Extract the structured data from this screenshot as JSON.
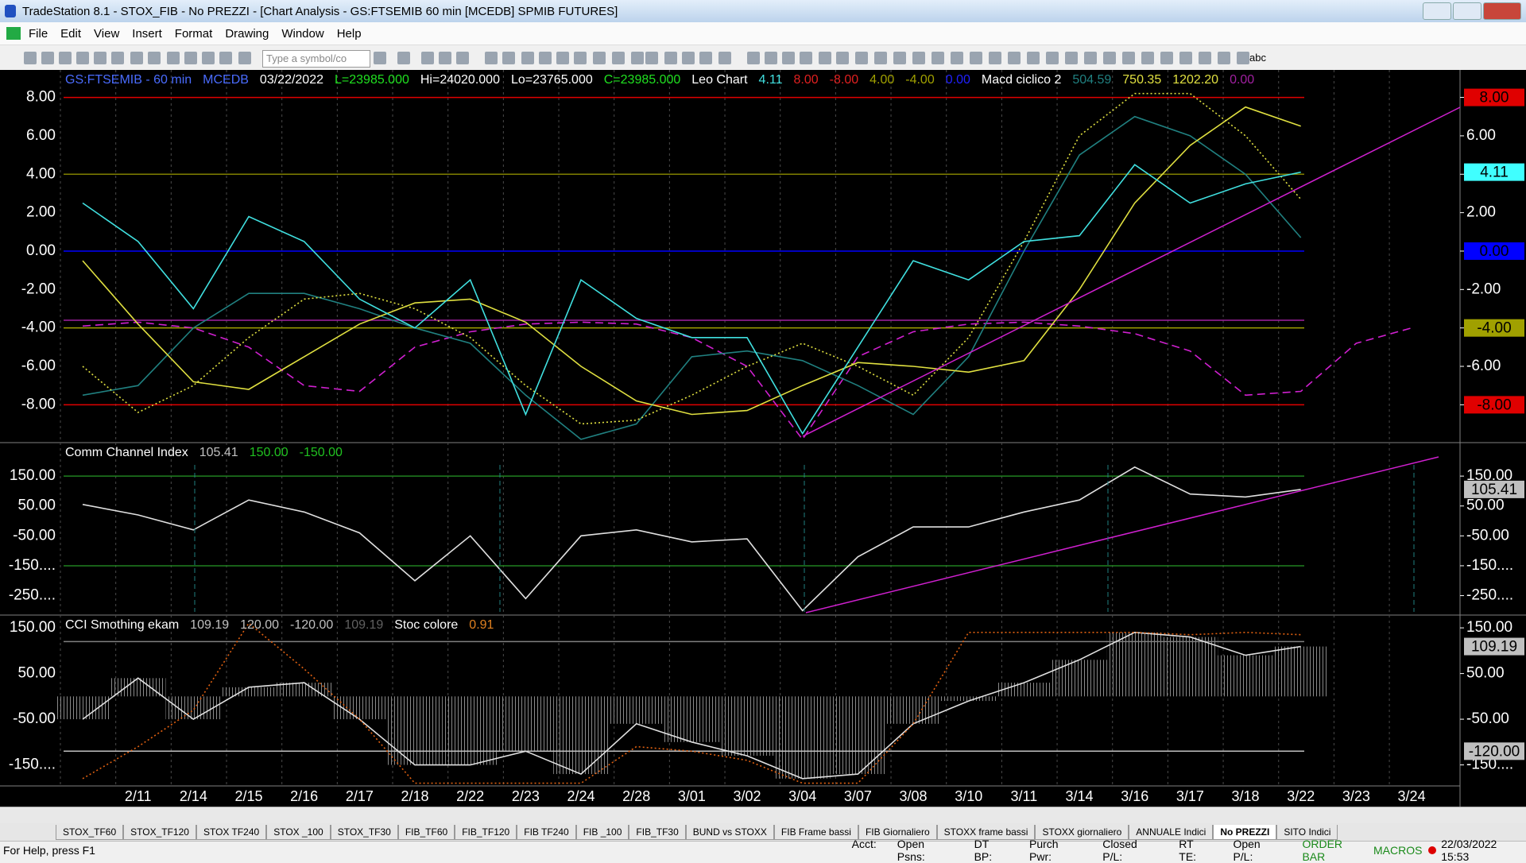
{
  "window": {
    "title": "TradeStation 8.1 - STOX_FIB - No PREZZI - [Chart Analysis - GS:FTSEMIB  60 min  [MCEDB] SPMIB FUTURES]",
    "menu": [
      "File",
      "Edit",
      "View",
      "Insert",
      "Format",
      "Drawing",
      "Window",
      "Help"
    ],
    "symbol_placeholder": "Type a symbol/co",
    "toolbar_text": "abc",
    "tabs": [
      "STOX_TF60",
      "STOX_TF120",
      "STOX TF240",
      "STOX _100",
      "STOX_TF30",
      "FIB_TF60",
      "FIB_TF120",
      "FIB TF240",
      "FIB _100",
      "FIB_TF30",
      "BUND vs STOXX",
      "FIB Frame bassi",
      "FIB Giornaliero",
      "STOXX frame bassi",
      "STOXX giornaliero",
      "ANNUALE Indici",
      "No PREZZI",
      "SITO Indici"
    ],
    "active_tab": "No PREZZI",
    "status": {
      "help": "For Help, press F1",
      "fields": [
        "Acct:",
        "Open Psns:",
        "DT BP:",
        "Purch Pwr:",
        "Closed P/L:",
        "RT TE:",
        "Open P/L:"
      ],
      "order_bar": "ORDER BAR",
      "macros": "MACROS",
      "datetime": "22/03/2022 15:53"
    }
  },
  "chart_data": [
    {
      "type": "line",
      "header": [
        {
          "text": "GS:FTSEMIB - 60 min",
          "color": "#4a6cff"
        },
        {
          "text": "MCEDB",
          "color": "#4a6cff"
        },
        {
          "text": "03/22/2022",
          "color": "#ffffff"
        },
        {
          "text": "L=23985.000",
          "color": "#20e020"
        },
        {
          "text": "Hi=24020.000",
          "color": "#ffffff"
        },
        {
          "text": "Lo=23765.000",
          "color": "#ffffff"
        },
        {
          "text": "C=23985.000",
          "color": "#20e020"
        },
        {
          "text": "Leo Chart",
          "color": "#ffffff"
        },
        {
          "text": "4.11",
          "color": "#40e0e0"
        },
        {
          "text": "8.00",
          "color": "#e02020"
        },
        {
          "text": "-8.00",
          "color": "#e02020"
        },
        {
          "text": "4.00",
          "color": "#a0a000"
        },
        {
          "text": "-4.00",
          "color": "#a0a000"
        },
        {
          "text": "0.00",
          "color": "#2020ff"
        },
        {
          "text": "Macd ciclico 2",
          "color": "#ffffff"
        },
        {
          "text": "504.59",
          "color": "#208080"
        },
        {
          "text": "750.35",
          "color": "#e0e040"
        },
        {
          "text": "1202.20",
          "color": "#e0e040"
        },
        {
          "text": "0.00",
          "color": "#a020a0"
        }
      ],
      "ylim": [
        -9.97,
        9.43
      ],
      "yticks": [
        {
          "value": 8,
          "label": "8.00"
        },
        {
          "value": 6,
          "label": "6.00"
        },
        {
          "value": 4,
          "label": "4.00"
        },
        {
          "value": 2,
          "label": "2.00"
        },
        {
          "value": 0,
          "label": "0.00"
        },
        {
          "value": -2,
          "label": "-2.00"
        },
        {
          "value": -4,
          "label": "-4.00"
        },
        {
          "value": -6,
          "label": "-6.00"
        },
        {
          "value": -8,
          "label": "-8.00"
        }
      ],
      "levels": [
        {
          "value": 8,
          "label": "8.00",
          "color": "#e00000",
          "text_color": "#000000",
          "line": true
        },
        {
          "value": 4,
          "color": "#808000",
          "line": true
        },
        {
          "value": 4.11,
          "label": "4.11",
          "color": "#40ffff",
          "text_color": "#000000",
          "line": false
        },
        {
          "value": 0,
          "label": "0.00",
          "color": "#0000ff",
          "text_color": "#000000",
          "line": true
        },
        {
          "value": -3.6,
          "color": "#a020a0",
          "line": true
        },
        {
          "value": -4,
          "label": "-4.00",
          "color": "#a0a000",
          "text_color": "#000000",
          "line": true
        },
        {
          "value": -8,
          "label": "-8.00",
          "color": "#e00000",
          "text_color": "#000000",
          "line": true
        }
      ],
      "series": [
        {
          "color": "#d020d0",
          "style": "dashed",
          "values": [
            -3.9,
            -3.7,
            -4,
            -5,
            -7,
            -7.3,
            -5,
            -4.2,
            -3.8,
            -3.7,
            -3.8,
            -4.5,
            -6,
            -9.8,
            -5.5,
            -4.2,
            -3.8,
            -3.7,
            -3.9,
            -4.3,
            -5.2,
            -7.5,
            -7.3,
            -4.8,
            -4
          ]
        },
        {
          "color": "#208080",
          "style": "solid",
          "values": [
            -7.5,
            -7,
            -4,
            -2.2,
            -2.2,
            -3,
            -4,
            -4.8,
            -7.5,
            -9.8,
            -9,
            -5.5,
            -5.2,
            -5.7,
            -7,
            -8.5,
            -5.5,
            0,
            5,
            7,
            6,
            4,
            0.7,
            null,
            null
          ]
        },
        {
          "color": "#e0e040",
          "style": "solid",
          "values": [
            -0.5,
            -3.8,
            -6.8,
            -7.2,
            -5.5,
            -3.8,
            -2.7,
            -2.5,
            -3.7,
            -6,
            -7.8,
            -8.5,
            -8.3,
            -7,
            -5.8,
            -6,
            -6.3,
            -5.7,
            -2,
            2.5,
            5.5,
            7.5,
            6.5,
            null,
            null
          ]
        },
        {
          "color": "#e0e040",
          "style": "dotted",
          "values": [
            -6,
            -8.4,
            -7,
            -4.5,
            -2.5,
            -2.2,
            -3,
            -4.5,
            -7,
            -9,
            -8.8,
            -7.5,
            -6,
            -4.8,
            -6,
            -7.5,
            -4.5,
            0.5,
            6,
            8.2,
            8.2,
            6,
            2.7,
            null,
            null
          ]
        },
        {
          "color": "#40e0e0",
          "style": "solid",
          "values": [
            2.5,
            0.5,
            -3,
            1.8,
            0.5,
            -2.5,
            -4,
            -1.5,
            -8.5,
            -1.5,
            -3.5,
            -4.5,
            -4.5,
            -9.5,
            -5,
            -0.5,
            -1.5,
            0.5,
            0.8,
            4.5,
            2.5,
            3.5,
            4.11,
            null,
            null
          ]
        }
      ]
    },
    {
      "type": "line",
      "header": [
        {
          "text": "Comm Channel Index",
          "color": "#ffffff"
        },
        {
          "text": "105.41",
          "color": "#c0c0c0"
        },
        {
          "text": "150.00",
          "color": "#20c020"
        },
        {
          "text": "-150.00",
          "color": "#20c020"
        }
      ],
      "ylim": [
        -315,
        262
      ],
      "yticks": [
        {
          "value": 150,
          "label": "150.00"
        },
        {
          "value": 50,
          "label": "50.00"
        },
        {
          "value": -50,
          "label": "-50.00"
        },
        {
          "value": -150,
          "label": "-150...."
        },
        {
          "value": -250,
          "label": "-250...."
        }
      ],
      "levels": [
        {
          "value": 150,
          "color": "#208020",
          "line": true
        },
        {
          "value": 105.41,
          "label": "105.41",
          "color": "#c0c0c0",
          "text_color": "#000000",
          "line": false
        },
        {
          "value": -150,
          "color": "#208020",
          "line": true
        }
      ],
      "series": [
        {
          "color": "#e0e0e0",
          "style": "solid",
          "values": [
            55,
            20,
            -30,
            70,
            30,
            -40,
            -200,
            -50,
            -260,
            -50,
            -30,
            -70,
            -60,
            -300,
            -120,
            -20,
            -20,
            30,
            70,
            180,
            90,
            80,
            105.41,
            null,
            null
          ]
        }
      ]
    },
    {
      "type": "line",
      "header": [
        {
          "text": "CCI Smothing ekam",
          "color": "#ffffff"
        },
        {
          "text": "109.19",
          "color": "#c0c0c0"
        },
        {
          "text": "120.00",
          "color": "#c0c0c0"
        },
        {
          "text": "-120.00",
          "color": "#c0c0c0"
        },
        {
          "text": "109.19",
          "color": "#606060"
        },
        {
          "text": "Stoc colore",
          "color": "#ffffff"
        },
        {
          "text": "0.91",
          "color": "#e08020"
        }
      ],
      "ylim": [
        -196,
        178
      ],
      "yticks": [
        {
          "value": 150,
          "label": "150.00"
        },
        {
          "value": 50,
          "label": "50.00"
        },
        {
          "value": -50,
          "label": "-50.00"
        },
        {
          "value": -150,
          "label": "-150...."
        }
      ],
      "levels": [
        {
          "value": 120,
          "color": "#808080",
          "line": true
        },
        {
          "value": 109.19,
          "label": "109.19",
          "color": "#c0c0c0",
          "text_color": "#000000",
          "line": false
        },
        {
          "value": -120,
          "label": "-120.00",
          "color": "#c0c0c0",
          "text_color": "#000000",
          "line": true
        }
      ],
      "categories": [
        null,
        "2/11",
        "2/14",
        "2/15",
        "2/16",
        "2/17",
        "2/18",
        "2/22",
        "2/23",
        "2/24",
        "2/28",
        "3/01",
        "3/02",
        "3/04",
        "3/07",
        "3/08",
        "3/10",
        "3/11",
        "3/14",
        "3/16",
        "3/17",
        "3/18",
        "3/22",
        "3/23",
        "3/24"
      ],
      "series": [
        {
          "color": "#e0e0e0",
          "style": "solid",
          "histogram": true,
          "values": [
            -50,
            40,
            -50,
            20,
            30,
            -50,
            -150,
            -150,
            -120,
            -170,
            -60,
            -100,
            -130,
            -180,
            -170,
            -60,
            -10,
            30,
            80,
            140,
            130,
            90,
            109.19,
            null,
            null
          ]
        },
        {
          "color": "#e06010",
          "style": "dotted",
          "values": [
            -180,
            -110,
            -30,
            160,
            60,
            -50,
            -190,
            -190,
            -190,
            -190,
            -110,
            -120,
            -140,
            -190,
            -190,
            -60,
            140,
            140,
            140,
            140,
            135,
            140,
            135,
            null,
            null
          ]
        }
      ]
    }
  ]
}
